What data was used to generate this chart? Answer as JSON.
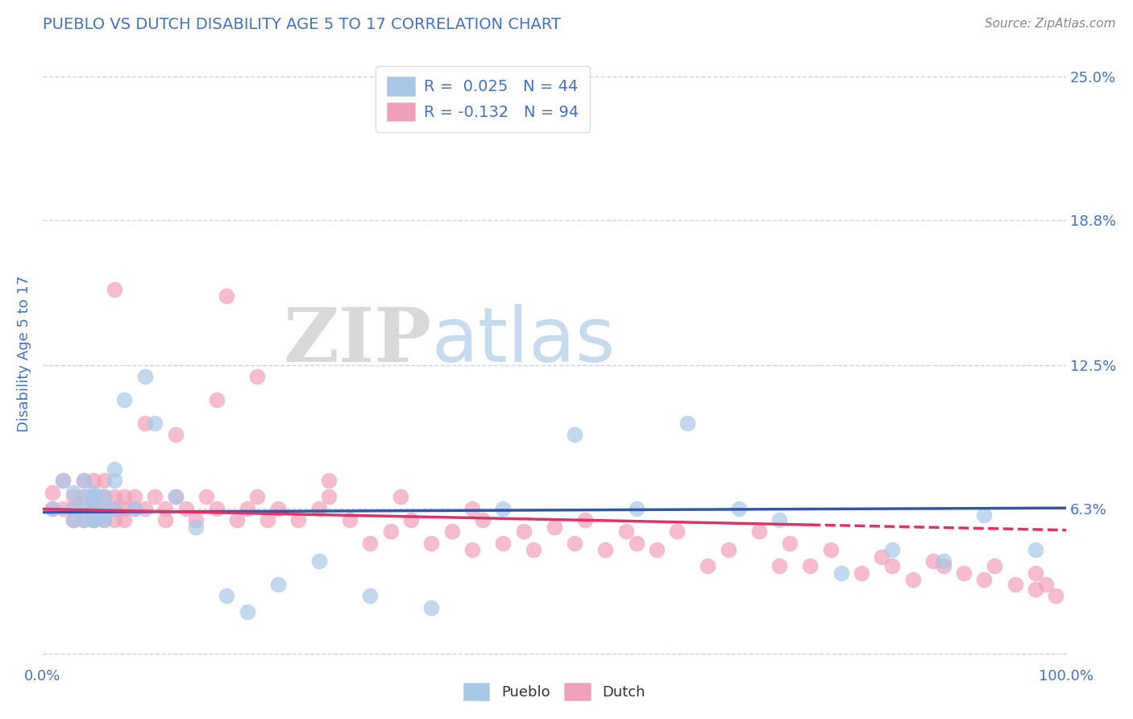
{
  "title": "PUEBLO VS DUTCH DISABILITY AGE 5 TO 17 CORRELATION CHART",
  "source": "Source: ZipAtlas.com",
  "ylabel": "Disability Age 5 to 17",
  "xlabel": "",
  "watermark_zip": "ZIP",
  "watermark_atlas": "atlas",
  "xlim": [
    0.0,
    1.0
  ],
  "ylim": [
    -0.005,
    0.265
  ],
  "yticks": [
    0.0,
    0.063,
    0.125,
    0.188,
    0.25
  ],
  "ytick_labels": [
    "",
    "6.3%",
    "12.5%",
    "18.8%",
    "25.0%"
  ],
  "xticks": [
    0.0,
    1.0
  ],
  "xtick_labels": [
    "0.0%",
    "100.0%"
  ],
  "pueblo_R": 0.025,
  "pueblo_N": 44,
  "dutch_R": -0.132,
  "dutch_N": 94,
  "pueblo_color": "#a8c8e8",
  "dutch_color": "#f0a0b8",
  "pueblo_line_color": "#3355aa",
  "dutch_line_color": "#dd3366",
  "title_color": "#4472c4",
  "axis_label_color": "#4472c4",
  "tick_label_color": "#4472c4",
  "source_color": "#888888",
  "legend_text_color": "#333333",
  "legend_rn_color": "#4472c4",
  "grid_color": "#c8d4e8",
  "pueblo_x": [
    0.01,
    0.02,
    0.03,
    0.03,
    0.03,
    0.04,
    0.04,
    0.04,
    0.04,
    0.05,
    0.05,
    0.05,
    0.05,
    0.05,
    0.06,
    0.06,
    0.06,
    0.06,
    0.07,
    0.07,
    0.07,
    0.08,
    0.09,
    0.1,
    0.11,
    0.13,
    0.15,
    0.18,
    0.2,
    0.23,
    0.27,
    0.32,
    0.38,
    0.45,
    0.52,
    0.58,
    0.63,
    0.68,
    0.72,
    0.78,
    0.83,
    0.88,
    0.92,
    0.97
  ],
  "pueblo_y": [
    0.063,
    0.075,
    0.07,
    0.063,
    0.058,
    0.068,
    0.075,
    0.058,
    0.063,
    0.068,
    0.058,
    0.063,
    0.07,
    0.058,
    0.06,
    0.068,
    0.063,
    0.058,
    0.08,
    0.075,
    0.063,
    0.11,
    0.063,
    0.12,
    0.1,
    0.068,
    0.055,
    0.025,
    0.018,
    0.03,
    0.04,
    0.025,
    0.02,
    0.063,
    0.095,
    0.063,
    0.1,
    0.063,
    0.058,
    0.035,
    0.045,
    0.04,
    0.06,
    0.045
  ],
  "dutch_x": [
    0.01,
    0.01,
    0.02,
    0.02,
    0.03,
    0.03,
    0.03,
    0.04,
    0.04,
    0.04,
    0.04,
    0.05,
    0.05,
    0.05,
    0.05,
    0.05,
    0.06,
    0.06,
    0.06,
    0.06,
    0.07,
    0.07,
    0.07,
    0.07,
    0.08,
    0.08,
    0.08,
    0.09,
    0.09,
    0.1,
    0.1,
    0.11,
    0.12,
    0.12,
    0.13,
    0.14,
    0.15,
    0.16,
    0.17,
    0.18,
    0.19,
    0.2,
    0.21,
    0.22,
    0.23,
    0.25,
    0.27,
    0.28,
    0.3,
    0.32,
    0.34,
    0.36,
    0.38,
    0.4,
    0.42,
    0.43,
    0.45,
    0.47,
    0.48,
    0.5,
    0.52,
    0.53,
    0.55,
    0.57,
    0.58,
    0.6,
    0.62,
    0.65,
    0.67,
    0.7,
    0.72,
    0.73,
    0.75,
    0.77,
    0.8,
    0.82,
    0.83,
    0.85,
    0.87,
    0.88,
    0.9,
    0.92,
    0.93,
    0.95,
    0.97,
    0.97,
    0.98,
    0.99,
    0.21,
    0.17,
    0.13,
    0.28,
    0.35,
    0.42
  ],
  "dutch_y": [
    0.07,
    0.063,
    0.075,
    0.063,
    0.068,
    0.063,
    0.058,
    0.068,
    0.063,
    0.058,
    0.075,
    0.063,
    0.068,
    0.058,
    0.075,
    0.063,
    0.068,
    0.063,
    0.058,
    0.075,
    0.063,
    0.068,
    0.158,
    0.058,
    0.068,
    0.063,
    0.058,
    0.063,
    0.068,
    0.063,
    0.1,
    0.068,
    0.063,
    0.058,
    0.068,
    0.063,
    0.058,
    0.068,
    0.063,
    0.155,
    0.058,
    0.063,
    0.068,
    0.058,
    0.063,
    0.058,
    0.063,
    0.068,
    0.058,
    0.048,
    0.053,
    0.058,
    0.048,
    0.053,
    0.045,
    0.058,
    0.048,
    0.053,
    0.045,
    0.055,
    0.048,
    0.058,
    0.045,
    0.053,
    0.048,
    0.045,
    0.053,
    0.038,
    0.045,
    0.053,
    0.038,
    0.048,
    0.038,
    0.045,
    0.035,
    0.042,
    0.038,
    0.032,
    0.04,
    0.038,
    0.035,
    0.032,
    0.038,
    0.03,
    0.028,
    0.035,
    0.03,
    0.025,
    0.12,
    0.11,
    0.095,
    0.075,
    0.068,
    0.063
  ]
}
